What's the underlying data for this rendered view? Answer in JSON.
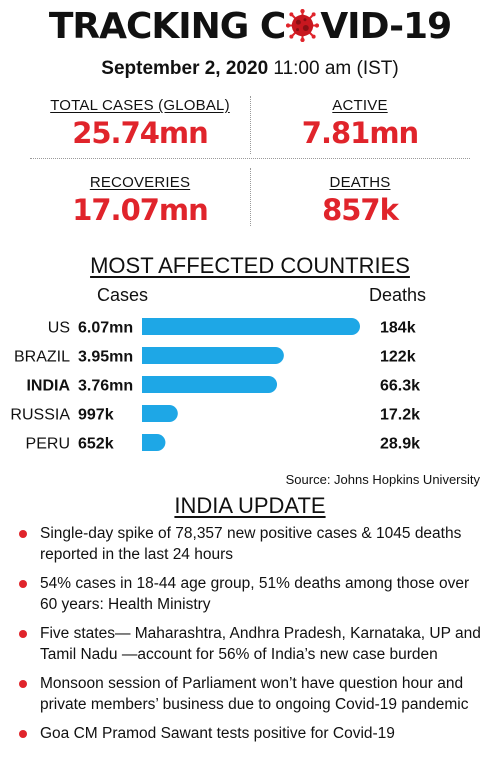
{
  "header": {
    "title_part1": "TRACKING C",
    "title_part2": "VID-19",
    "date": "September 2, 2020",
    "time": "11:00 am (IST)"
  },
  "stats": {
    "total_label": "TOTAL CASES (GLOBAL)",
    "total_value": "25.74mn",
    "active_label": "ACTIVE",
    "active_value": "7.81mn",
    "recoveries_label": "RECOVERIES",
    "recoveries_value": "17.07mn",
    "deaths_label": "DEATHS",
    "deaths_value": "857k"
  },
  "colors": {
    "accent_red": "#e0242b",
    "bar_blue": "#1ea7e6",
    "virus_icon": "coronavirus-icon"
  },
  "chart_section": {
    "heading": "MOST AFFECTED COUNTRIES",
    "cases_heading": "Cases",
    "deaths_heading": "Deaths",
    "source": "Source: Johns Hopkins University"
  },
  "chart_data": {
    "type": "bar",
    "orientation": "horizontal",
    "title": "MOST AFFECTED COUNTRIES",
    "categories": [
      "US",
      "BRAZIL",
      "INDIA",
      "RUSSIA",
      "PERU"
    ],
    "highlighted_category": "INDIA",
    "series": [
      {
        "name": "Cases",
        "values": [
          6.07,
          3.95,
          3.76,
          0.997,
          0.652
        ]
      },
      {
        "name": "Deaths",
        "values": [
          184,
          122,
          66.3,
          17.2,
          28.9
        ]
      }
    ],
    "case_labels": [
      "6.07mn",
      "3.95mn",
      "3.76mn",
      "997k",
      "652k"
    ],
    "death_labels": [
      "184k",
      "122k",
      "66.3k",
      "17.2k",
      "28.9k"
    ],
    "grid": false
  },
  "india_update": {
    "heading": "INDIA UPDATE",
    "items": [
      "Single-day spike of 78,357 new positive cases & 1045 deaths reported in the last 24 hours",
      "54% cases in 18-44 age group, 51% deaths among those over 60 years: Health Ministry",
      "Five states— Maharashtra, Andhra Pradesh, Karnataka, UP and Tamil Nadu —account for 56% of India’s new case burden",
      "Monsoon session of Parliament won’t have question hour and private members’ business due to ongoing Covid-19 pandemic",
      "Goa CM Pramod Sawant tests positive for Covid-19"
    ]
  }
}
